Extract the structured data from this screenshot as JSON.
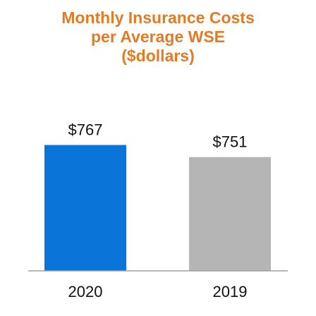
{
  "chart_data": {
    "type": "bar",
    "title_lines": [
      "Monthly Insurance Costs",
      "per Average WSE",
      "($dollars)"
    ],
    "categories": [
      "2020",
      "2019"
    ],
    "values": [
      767,
      751
    ],
    "value_labels": [
      "$767",
      "$751"
    ],
    "xlabel": "",
    "ylabel": "",
    "ylim": [
      600,
      775
    ],
    "grid": false,
    "legend": "none",
    "colors": [
      "#0b74d8",
      "#b5b5b5"
    ],
    "axis_color": "#a0a0a0"
  }
}
